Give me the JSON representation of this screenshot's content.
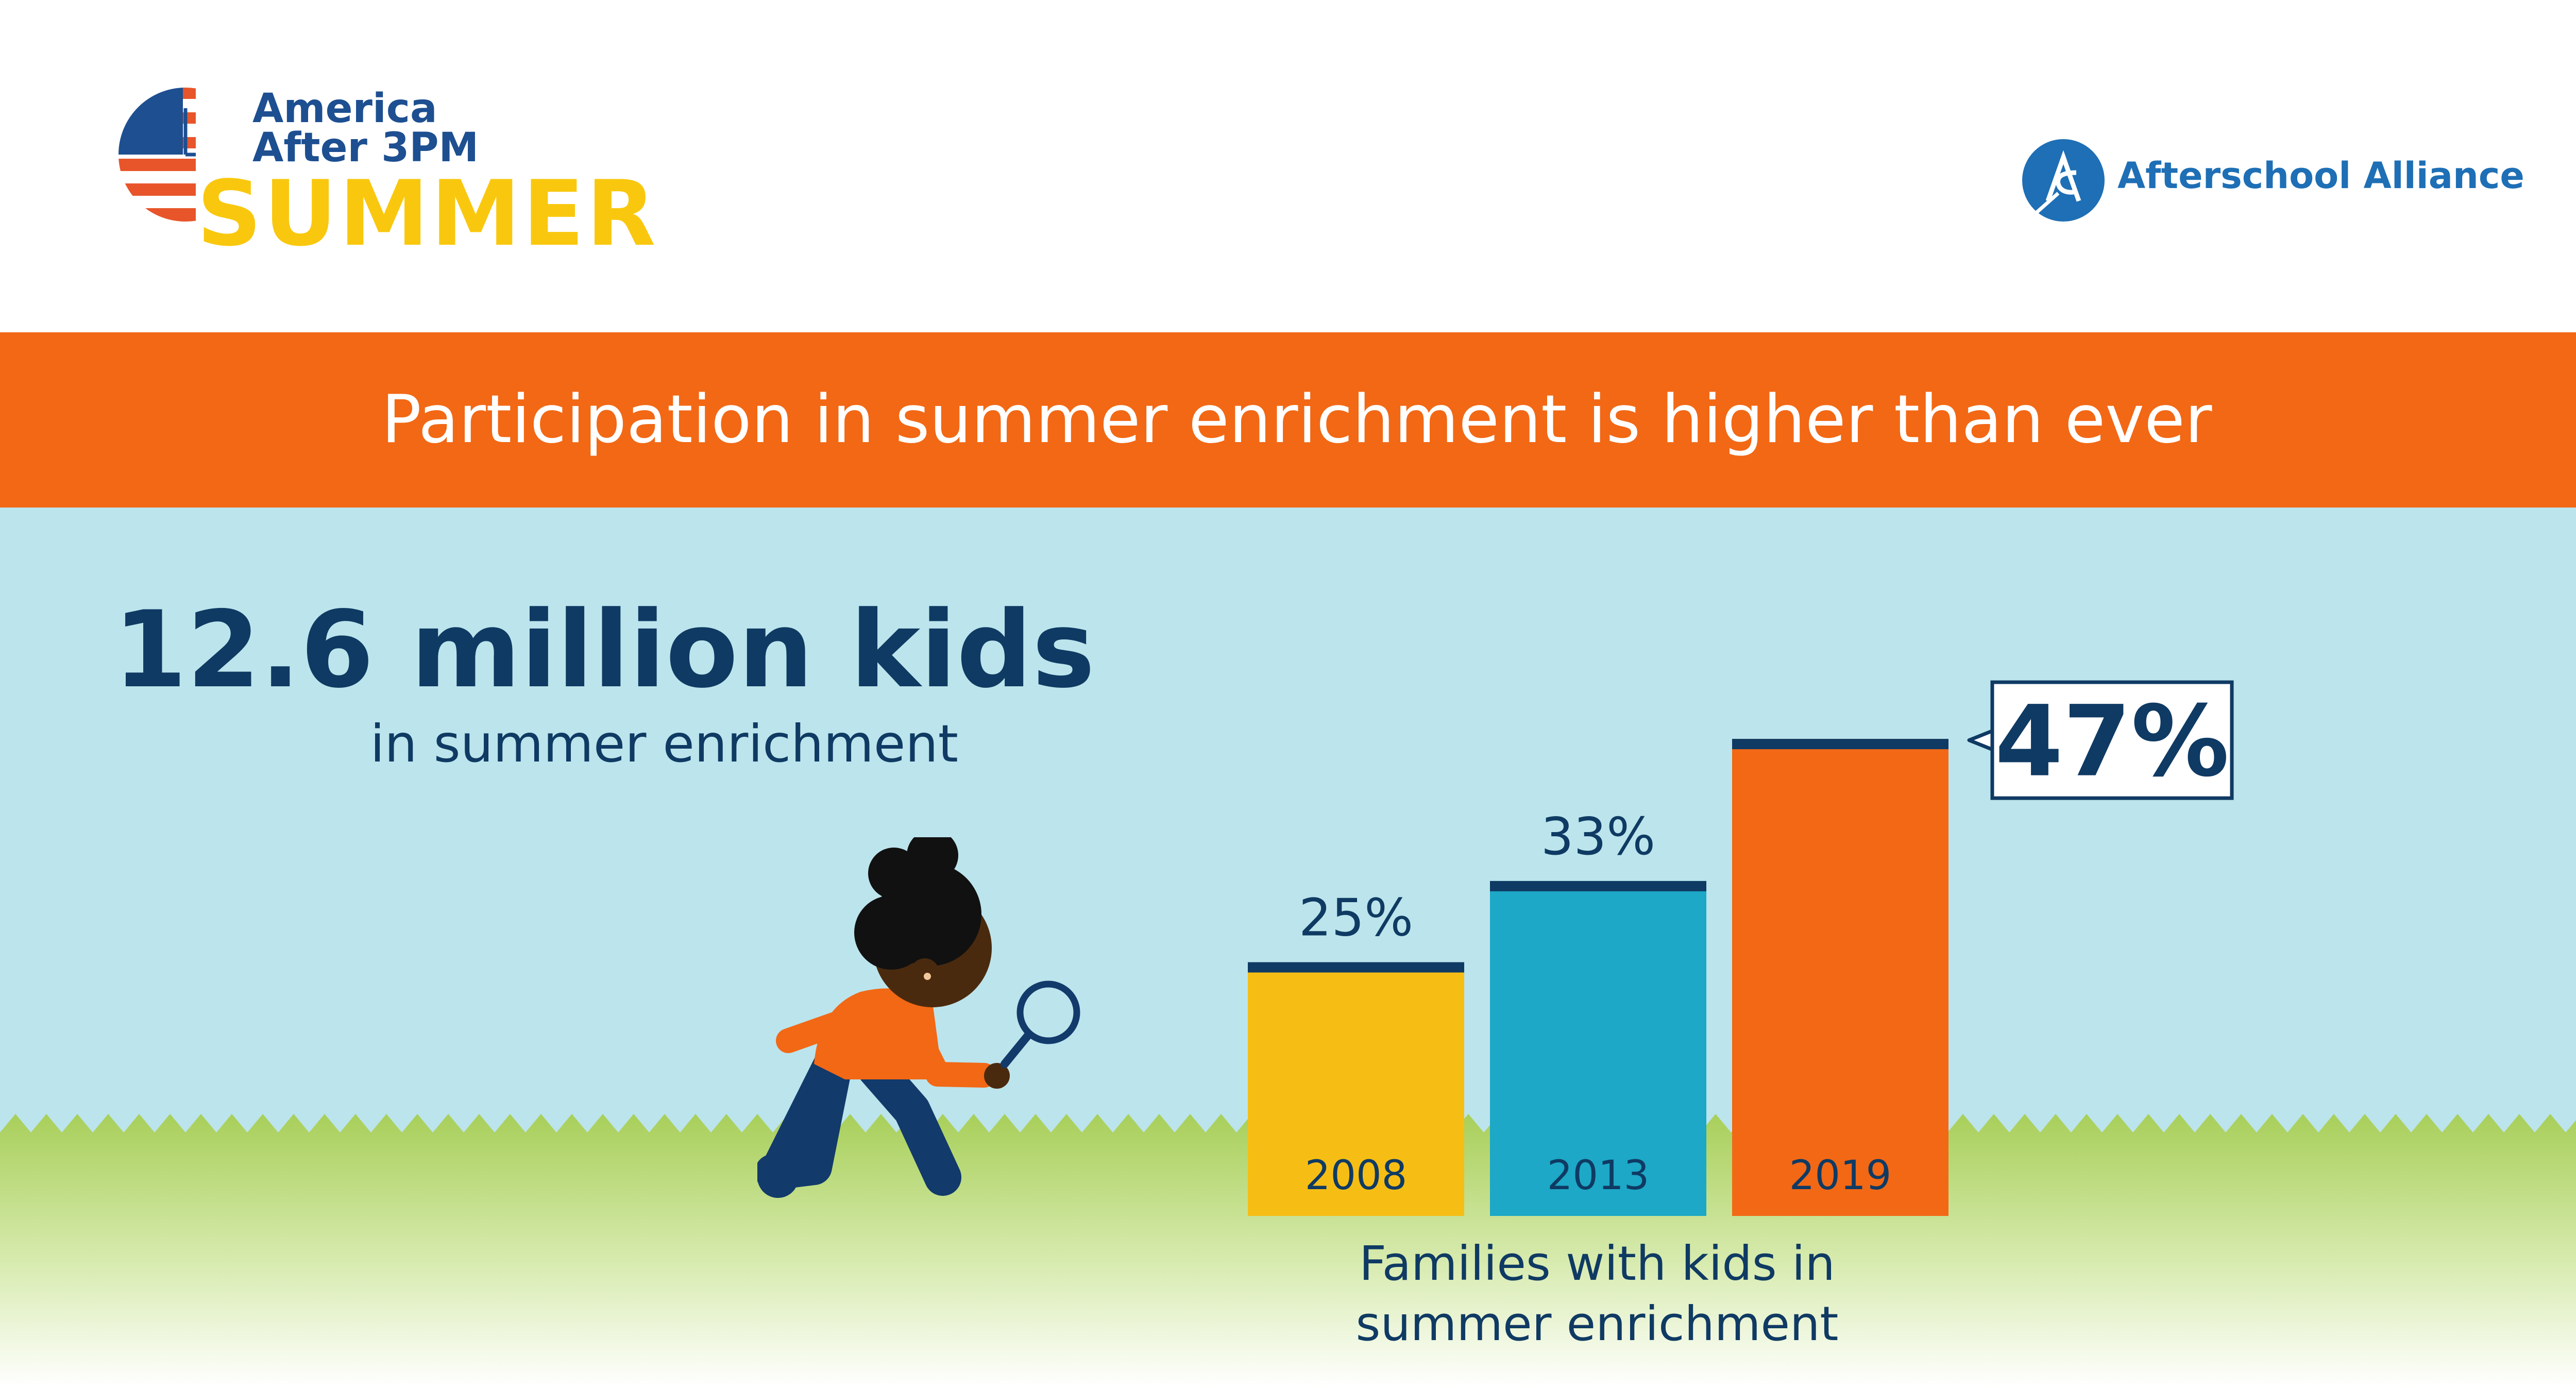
{
  "logo": {
    "line1": "America",
    "line2": "After 3PM",
    "line3": "SUMMER"
  },
  "partner_logo": {
    "name": "Afterschool Alliance"
  },
  "banner": {
    "title": "Participation in summer enrichment is higher than ever"
  },
  "headline": {
    "stat": "12.6 million kids",
    "caption": "in summer enrichment"
  },
  "chart_caption": {
    "line1": "Families with kids in",
    "line2": "summer enrichment"
  },
  "colors": {
    "banner": "#f26815",
    "sky": "#bce4ec",
    "grass": "#a8cf5a",
    "navy": "#0f3a63",
    "bar_2008": "#f6be14",
    "bar_2013": "#1ca8c6",
    "bar_2019": "#f26815"
  },
  "chart_data": {
    "type": "bar",
    "categories": [
      "2008",
      "2013",
      "2019"
    ],
    "values": [
      25,
      33,
      47
    ],
    "value_labels": [
      "25%",
      "33%",
      "47%"
    ],
    "highlight_index": 2,
    "title": "",
    "xlabel": "",
    "ylabel": "",
    "ylim": [
      0,
      50
    ]
  }
}
